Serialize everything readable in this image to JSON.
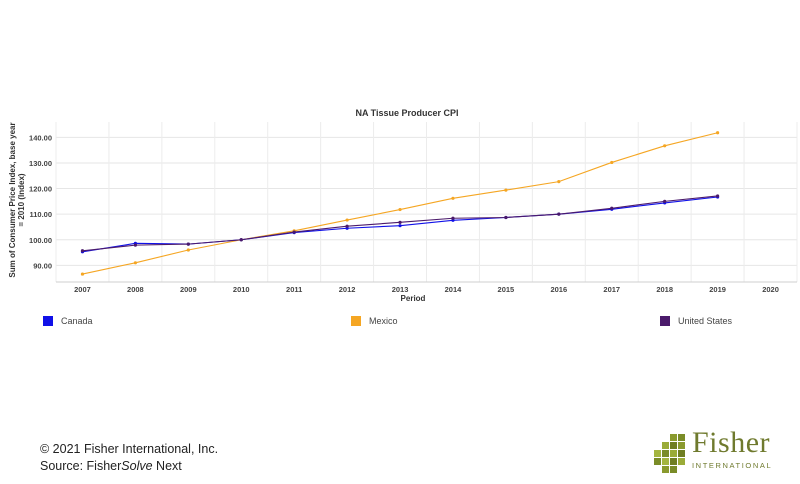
{
  "chart_data": {
    "type": "line",
    "title": "NA Tissue Producer CPI",
    "xlabel": "Period",
    "ylabel_line1": "Sum of Consumer Price Index, base year",
    "ylabel_line2": "= 2010 (Index)",
    "categories": [
      "2007",
      "2008",
      "2009",
      "2010",
      "2011",
      "2012",
      "2013",
      "2014",
      "2015",
      "2016",
      "2017",
      "2018",
      "2019",
      "2020"
    ],
    "yticks": [
      90,
      100,
      110,
      120,
      130,
      140
    ],
    "ytick_labels": [
      "90.00",
      "100.00",
      "110.00",
      "120.00",
      "130.00",
      "140.00"
    ],
    "ylim": [
      83.5,
      146
    ],
    "grid": true,
    "legend_position": "bottom",
    "series": [
      {
        "name": "Canada",
        "color": "#1010e8",
        "values": [
          95.3,
          98.6,
          98.3,
          100.0,
          102.8,
          104.5,
          105.5,
          107.6,
          108.7,
          110.0,
          111.9,
          114.4,
          116.7,
          null
        ]
      },
      {
        "name": "Mexico",
        "color": "#f5a623",
        "values": [
          86.6,
          91.0,
          96.0,
          100.0,
          103.5,
          107.7,
          111.8,
          116.2,
          119.4,
          122.7,
          130.2,
          136.7,
          141.8,
          null
        ]
      },
      {
        "name": "United States",
        "color": "#4b1a6b",
        "values": [
          95.7,
          97.9,
          98.3,
          100.0,
          103.0,
          105.3,
          106.8,
          108.4,
          108.7,
          110.0,
          112.3,
          115.0,
          117.1,
          null
        ]
      }
    ]
  },
  "footer": {
    "copyright": "© 2021 Fisher International, Inc.",
    "source_prefix": "Source: Fisher",
    "source_italic": "Solve",
    "source_suffix": " Next"
  },
  "logo": {
    "word": "Fisher",
    "sub": "INTERNATIONAL",
    "color": "#6f7a2e"
  }
}
